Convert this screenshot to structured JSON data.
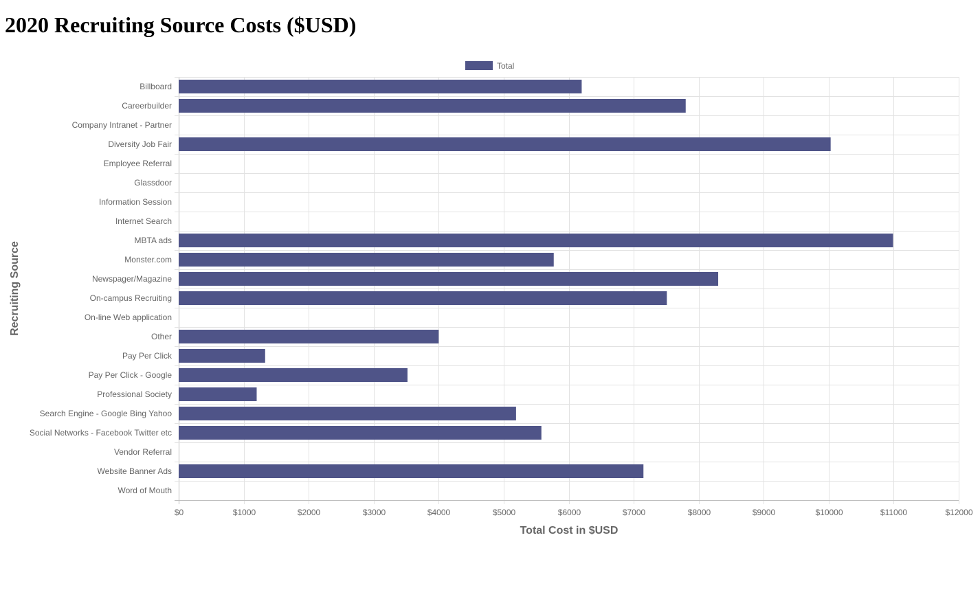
{
  "page": {
    "title": "2020 Recruiting Source Costs ($USD)"
  },
  "chart_data": {
    "type": "bar",
    "orientation": "horizontal",
    "title": "",
    "xlabel": "Total Cost in $USD",
    "ylabel": "Recruiting Source",
    "xlim": [
      0,
      12000
    ],
    "x_tick_step": 1000,
    "x_tick_prefix": "$",
    "grid": true,
    "legend_position": "top",
    "bar_color": "#4f5488",
    "categories": [
      "Billboard",
      "Careerbuilder",
      "Company Intranet - Partner",
      "Diversity Job Fair",
      "Employee Referral",
      "Glassdoor",
      "Information Session",
      "Internet Search",
      "MBTA ads",
      "Monster.com",
      "Newspager/Magazine",
      "On-campus Recruiting",
      "On-line Web application",
      "Other",
      "Pay Per Click",
      "Pay Per Click - Google",
      "Professional Society",
      "Search Engine - Google Bing Yahoo",
      "Social Networks - Facebook Twitter etc",
      "Vendor Referral",
      "Website Banner Ads",
      "Word of Mouth"
    ],
    "series": [
      {
        "name": "Total",
        "values": [
          6200,
          7800,
          0,
          10030,
          0,
          0,
          0,
          0,
          10990,
          5770,
          8300,
          7510,
          0,
          4000,
          1330,
          3520,
          1200,
          5190,
          5580,
          0,
          7150,
          0
        ]
      }
    ]
  }
}
